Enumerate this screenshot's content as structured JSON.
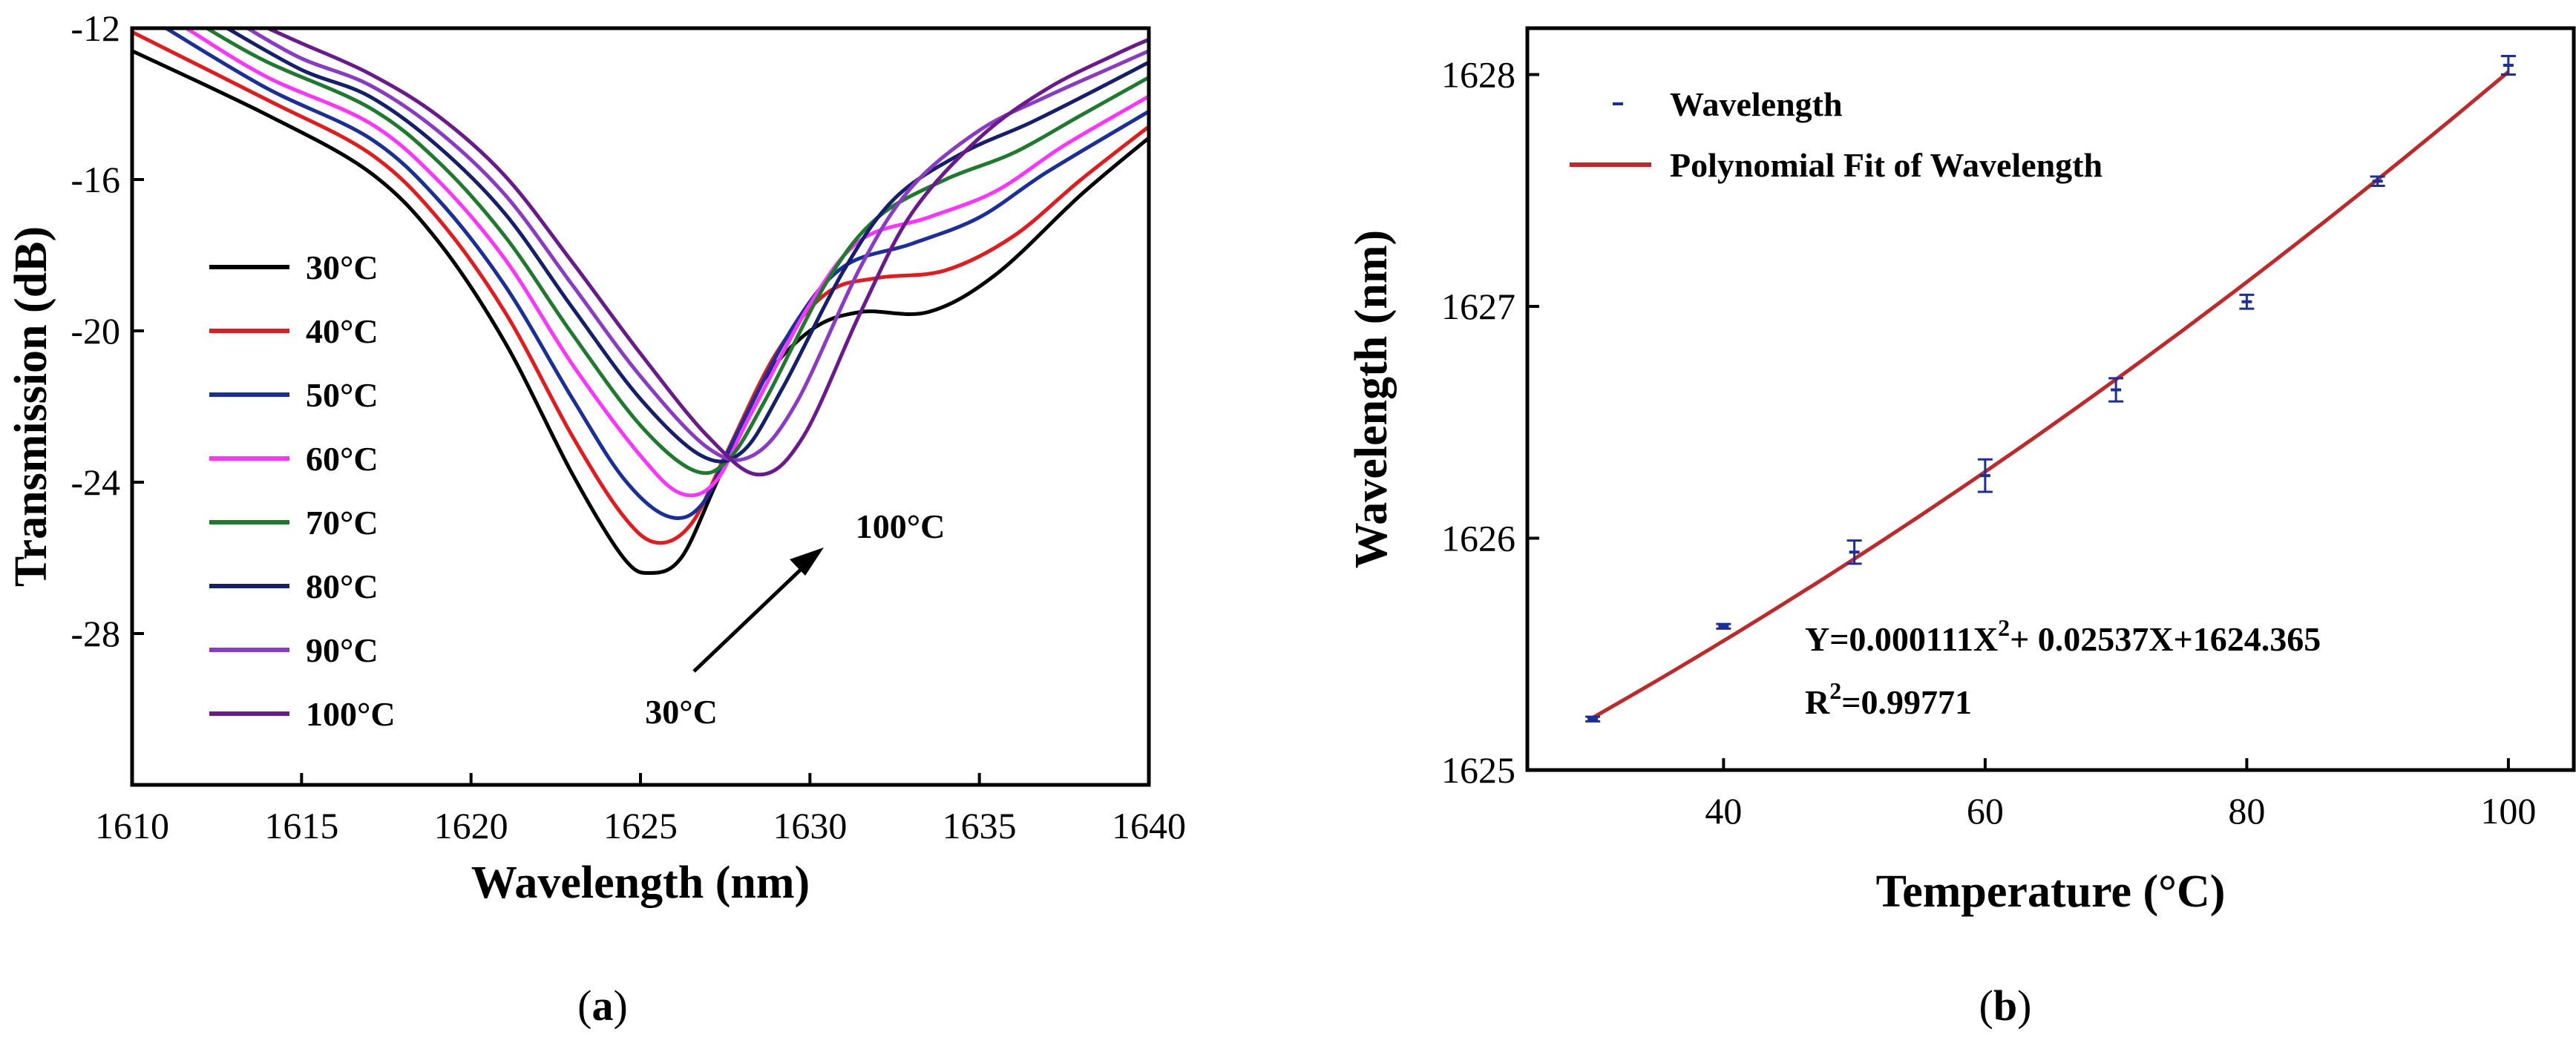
{
  "chart_data": [
    {
      "type": "line",
      "panel_label": "a",
      "xlabel": "Wavelength (nm)",
      "ylabel": "Transmission (dB)",
      "xlim": [
        1610,
        1640
      ],
      "ylim": [
        -32,
        -12
      ],
      "xticks": [
        1610,
        1615,
        1620,
        1625,
        1630,
        1635,
        1640
      ],
      "yticks": [
        -12,
        -16,
        -20,
        -24,
        -28
      ],
      "legend": "left",
      "annotations": {
        "start": "30°C",
        "end": "100°C"
      },
      "series": [
        {
          "name": "30°C",
          "color": "#000000",
          "points": [
            [
              1610,
              -12.6
            ],
            [
              1614,
              -14.3
            ],
            [
              1617,
              -15.8
            ],
            [
              1619,
              -17.6
            ],
            [
              1621,
              -20.3
            ],
            [
              1623,
              -23.8
            ],
            [
              1624.5,
              -26.0
            ],
            [
              1625.3,
              -26.4
            ],
            [
              1626.2,
              -26.0
            ],
            [
              1627.2,
              -24.1
            ],
            [
              1628.5,
              -21.5
            ],
            [
              1630,
              -20.0
            ],
            [
              1631.5,
              -19.5
            ],
            [
              1633.5,
              -19.5
            ],
            [
              1635.5,
              -18.5
            ],
            [
              1638,
              -16.4
            ],
            [
              1640,
              -14.9
            ]
          ]
        },
        {
          "name": "40°C",
          "color": "#e41a1c",
          "points": [
            [
              1610,
              -12.1
            ],
            [
              1614,
              -13.9
            ],
            [
              1617,
              -15.3
            ],
            [
              1619,
              -17.0
            ],
            [
              1621,
              -19.5
            ],
            [
              1623,
              -22.8
            ],
            [
              1624.5,
              -24.9
            ],
            [
              1625.5,
              -25.6
            ],
            [
              1626.5,
              -25.1
            ],
            [
              1627.5,
              -23.3
            ],
            [
              1629,
              -20.6
            ],
            [
              1630.5,
              -19.0
            ],
            [
              1632,
              -18.6
            ],
            [
              1634,
              -18.4
            ],
            [
              1636,
              -17.5
            ],
            [
              1638,
              -16.0
            ],
            [
              1640,
              -14.6
            ]
          ]
        },
        {
          "name": "50°C",
          "color": "#1a2f9b",
          "points": [
            [
              1611,
              -12.0
            ],
            [
              1614,
              -13.6
            ],
            [
              1617,
              -14.9
            ],
            [
              1619,
              -16.5
            ],
            [
              1621,
              -18.8
            ],
            [
              1623,
              -21.8
            ],
            [
              1624.5,
              -23.9
            ],
            [
              1625.8,
              -24.9
            ],
            [
              1626.8,
              -24.6
            ],
            [
              1627.8,
              -22.8
            ],
            [
              1629.5,
              -19.9
            ],
            [
              1631,
              -18.3
            ],
            [
              1633,
              -17.7
            ],
            [
              1635,
              -17.0
            ],
            [
              1637,
              -15.8
            ],
            [
              1640,
              -14.2
            ]
          ]
        },
        {
          "name": "60°C",
          "color": "#ff33ff",
          "points": [
            [
              1611.6,
              -12.0
            ],
            [
              1614,
              -13.3
            ],
            [
              1617,
              -14.5
            ],
            [
              1619,
              -16.0
            ],
            [
              1621,
              -18.1
            ],
            [
              1623,
              -20.9
            ],
            [
              1625,
              -23.3
            ],
            [
              1626.2,
              -24.3
            ],
            [
              1627.2,
              -24.0
            ],
            [
              1628.2,
              -22.3
            ],
            [
              1630,
              -19.3
            ],
            [
              1631.5,
              -17.6
            ],
            [
              1633.5,
              -17.0
            ],
            [
              1635.5,
              -16.3
            ],
            [
              1637.5,
              -15.1
            ],
            [
              1640,
              -13.8
            ]
          ]
        },
        {
          "name": "70°C",
          "color": "#1e7b2e",
          "points": [
            [
              1612.2,
              -12.0
            ],
            [
              1614,
              -12.9
            ],
            [
              1617,
              -14.1
            ],
            [
              1619,
              -15.5
            ],
            [
              1621,
              -17.5
            ],
            [
              1623,
              -20.1
            ],
            [
              1625,
              -22.5
            ],
            [
              1626.6,
              -23.7
            ],
            [
              1627.6,
              -23.4
            ],
            [
              1628.7,
              -21.8
            ],
            [
              1630.5,
              -18.7
            ],
            [
              1632,
              -17.0
            ],
            [
              1634,
              -16.0
            ],
            [
              1636,
              -15.3
            ],
            [
              1638,
              -14.3
            ],
            [
              1640,
              -13.3
            ]
          ]
        },
        {
          "name": "80°C",
          "color": "#151f6e",
          "points": [
            [
              1612.8,
              -12.0
            ],
            [
              1615,
              -13.1
            ],
            [
              1617,
              -13.8
            ],
            [
              1619,
              -15.1
            ],
            [
              1621,
              -16.9
            ],
            [
              1623,
              -19.4
            ],
            [
              1625,
              -21.8
            ],
            [
              1626.8,
              -23.3
            ],
            [
              1628,
              -23.2
            ],
            [
              1629.2,
              -21.5
            ],
            [
              1631,
              -18.4
            ],
            [
              1632.5,
              -16.5
            ],
            [
              1634.5,
              -15.3
            ],
            [
              1636.5,
              -14.5
            ],
            [
              1638.5,
              -13.6
            ],
            [
              1640,
              -12.9
            ]
          ]
        },
        {
          "name": "90°C",
          "color": "#8a3ac4",
          "points": [
            [
              1613.4,
              -12.0
            ],
            [
              1615,
              -12.8
            ],
            [
              1617,
              -13.5
            ],
            [
              1619,
              -14.7
            ],
            [
              1621,
              -16.4
            ],
            [
              1623,
              -18.8
            ],
            [
              1625,
              -21.2
            ],
            [
              1627,
              -23.1
            ],
            [
              1628.3,
              -23.3
            ],
            [
              1629.6,
              -21.9
            ],
            [
              1631.5,
              -18.3
            ],
            [
              1633,
              -16.2
            ],
            [
              1635,
              -14.7
            ],
            [
              1637,
              -13.8
            ],
            [
              1639,
              -13.0
            ],
            [
              1640,
              -12.6
            ]
          ]
        },
        {
          "name": "100°C",
          "color": "#6a1a8c",
          "points": [
            [
              1614,
              -12.0
            ],
            [
              1615,
              -12.4
            ],
            [
              1617,
              -13.2
            ],
            [
              1619,
              -14.3
            ],
            [
              1621,
              -15.9
            ],
            [
              1623,
              -18.2
            ],
            [
              1625,
              -20.6
            ],
            [
              1627,
              -22.8
            ],
            [
              1628.5,
              -23.8
            ],
            [
              1629.8,
              -22.8
            ],
            [
              1631.5,
              -19.5
            ],
            [
              1633,
              -16.9
            ],
            [
              1635,
              -14.9
            ],
            [
              1637,
              -13.6
            ],
            [
              1639,
              -12.7
            ],
            [
              1640,
              -12.3
            ]
          ]
        }
      ]
    },
    {
      "type": "scatter",
      "panel_label": "b",
      "xlabel": "Temperature (°C)",
      "ylabel": "Wavelength (nm)",
      "xlim": [
        25,
        105
      ],
      "ylim": [
        1625,
        1628.2
      ],
      "xticks": [
        40,
        60,
        80,
        100
      ],
      "yticks": [
        1625,
        1626,
        1627,
        1628
      ],
      "legend": "top-left",
      "series": [
        {
          "name": "Wavelength",
          "color": "#1a2f9b",
          "x": [
            30,
            40,
            50,
            60,
            70,
            80,
            90,
            100
          ],
          "y": [
            1625.22,
            1625.62,
            1625.94,
            1626.27,
            1626.64,
            1627.02,
            1627.54,
            1628.04
          ],
          "err": [
            0.01,
            0.01,
            0.05,
            0.07,
            0.05,
            0.03,
            0.02,
            0.04
          ]
        },
        {
          "name": "Polynomial Fit of Wavelength",
          "color": "#c0282a",
          "fit": {
            "a": 0.000111,
            "b": 0.02537,
            "c": 1624.365
          }
        }
      ],
      "equation": {
        "prefix": "Y=0.000111X",
        "power": "2",
        "suffix": "+ 0.02537X+1624.365"
      },
      "r2": {
        "prefix": "R",
        "power": "2",
        "suffix": "=0.99771"
      }
    }
  ]
}
